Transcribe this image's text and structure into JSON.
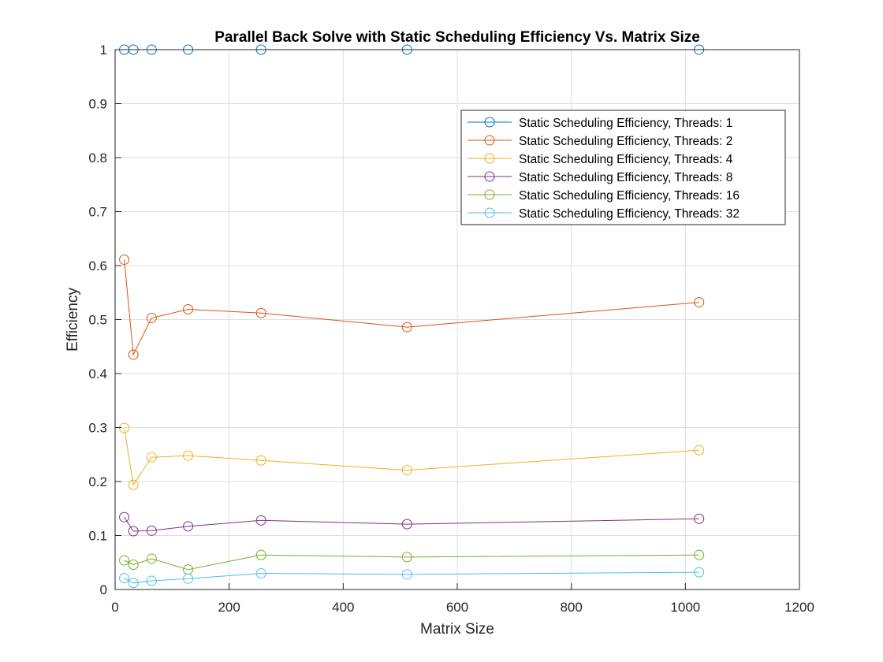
{
  "chart_data": {
    "type": "line",
    "title": "Parallel Back Solve with Static Scheduling Efficiency Vs. Matrix Size",
    "xlabel": "Matrix Size",
    "ylabel": "Efficiency",
    "xlim": [
      0,
      1200
    ],
    "ylim": [
      0,
      1
    ],
    "x_ticks": [
      0,
      200,
      400,
      600,
      800,
      1000,
      1200
    ],
    "y_ticks": [
      0,
      0.1,
      0.2,
      0.3,
      0.4,
      0.5,
      0.6,
      0.7,
      0.8,
      0.9,
      1
    ],
    "x_tick_labels": [
      "0",
      "200",
      "400",
      "600",
      "800",
      "1000",
      "1200"
    ],
    "y_tick_labels": [
      "0",
      "0.1",
      "0.2",
      "0.3",
      "0.4",
      "0.5",
      "0.6",
      "0.7",
      "0.8",
      "0.9",
      "1"
    ],
    "grid": true,
    "legend_position": "top-right",
    "marker": "circle",
    "x": [
      16,
      32,
      64,
      128,
      256,
      512,
      1024
    ],
    "series": [
      {
        "name": "Static Scheduling Efficiency, Threads: 1",
        "color": "#0072BD",
        "values": [
          1,
          1,
          1,
          1,
          1,
          1,
          1
        ]
      },
      {
        "name": "Static Scheduling Efficiency, Threads: 2",
        "color": "#D95319",
        "values": [
          0.611,
          0.435,
          0.503,
          0.519,
          0.512,
          0.486,
          0.532
        ]
      },
      {
        "name": "Static Scheduling Efficiency, Threads: 4",
        "color": "#EDB120",
        "values": [
          0.299,
          0.194,
          0.245,
          0.248,
          0.239,
          0.221,
          0.258
        ]
      },
      {
        "name": "Static Scheduling Efficiency, Threads: 8",
        "color": "#7E2F8E",
        "values": [
          0.134,
          0.108,
          0.109,
          0.117,
          0.128,
          0.121,
          0.131
        ]
      },
      {
        "name": "Static Scheduling Efficiency, Threads: 16",
        "color": "#77AC30",
        "values": [
          0.054,
          0.046,
          0.057,
          0.037,
          0.064,
          0.06,
          0.064
        ]
      },
      {
        "name": "Static Scheduling Efficiency, Threads: 32",
        "color": "#4DBEEE",
        "values": [
          0.021,
          0.012,
          0.016,
          0.02,
          0.03,
          0.028,
          0.032
        ]
      }
    ]
  }
}
